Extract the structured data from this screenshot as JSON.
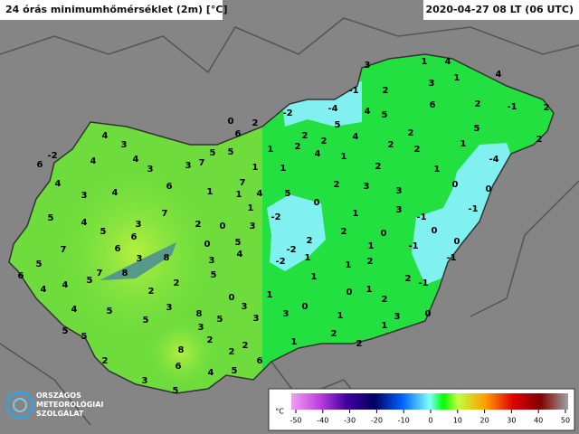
{
  "header": {
    "title": "24 órás minimumhőmérséklet (2m) [°C]",
    "timestamp": "2020-04-27 08 LT (06 UTC)"
  },
  "stations": [
    3,
    1,
    4,
    4,
    3,
    1,
    -1,
    2,
    6,
    -1,
    2,
    -2,
    -4,
    4,
    5,
    2,
    0,
    6,
    2,
    2,
    2,
    4,
    5,
    4,
    3,
    2,
    5,
    2,
    1,
    2,
    4,
    1,
    2,
    2,
    1,
    -4,
    -2,
    4,
    4,
    3,
    7,
    5,
    5,
    6,
    3,
    1,
    1,
    2,
    1,
    4,
    6,
    7,
    4,
    2,
    3,
    0,
    0,
    5,
    1,
    0,
    3,
    3,
    4,
    1,
    5,
    7,
    1,
    3,
    -2,
    3,
    4,
    2,
    1,
    5,
    6,
    -1,
    -1,
    3,
    2,
    0,
    7,
    6,
    8,
    0,
    5,
    -2,
    2,
    0,
    1,
    -1,
    0,
    0,
    4,
    1,
    -2,
    3,
    3,
    5,
    6,
    5,
    7,
    8,
    1,
    2,
    -1,
    4,
    5,
    2,
    4,
    1,
    -1,
    2,
    2,
    1,
    0,
    1,
    0,
    0,
    3,
    2,
    4,
    5,
    3,
    8,
    3,
    5,
    5,
    3,
    1,
    0,
    3,
    1,
    5,
    3,
    2,
    1,
    5,
    2,
    2,
    2,
    8,
    2,
    6,
    2,
    6,
    4,
    5,
    3,
    5
  ],
  "colorbar": {
    "unit": "°C",
    "ticks": [
      -50,
      -40,
      -30,
      -20,
      -10,
      0,
      10,
      20,
      30,
      40,
      50
    ]
  },
  "logo": {
    "lines": [
      "ORSZÁGOS",
      "METEOROLÓGIAI",
      "SZOLGÁLAT"
    ]
  }
}
